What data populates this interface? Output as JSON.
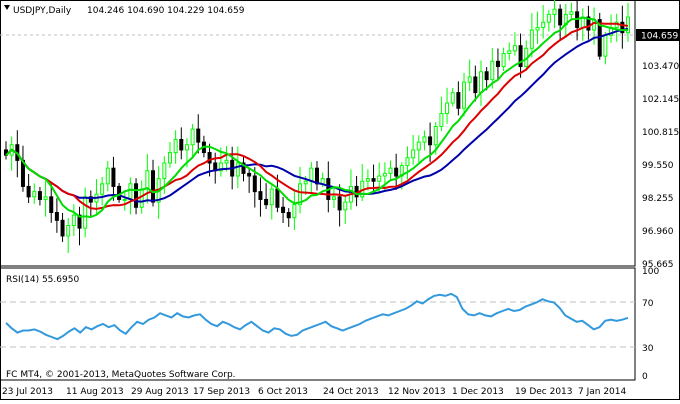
{
  "main_chart": {
    "symbol_label": "USDJPY,Daily",
    "ohlc_label": "104.246 104.690 104.229 104.659",
    "price_scale": [
      "104.659",
      "103.470",
      "102.145",
      "100.815",
      "99.550",
      "98.255",
      "96.960",
      "95.665"
    ],
    "current_price": "104.659"
  },
  "rsi_panel": {
    "label": "RSI(14) 55.6950",
    "scale": [
      "100",
      "70",
      "30",
      "0"
    ],
    "copyright": "FC MT4, © 2001-2013, MetaQuotes Software Corp."
  },
  "time_axis": {
    "labels": [
      "23 Jul 2013",
      "11 Aug 2013",
      "29 Aug 2013",
      "17 Sep 2013",
      "6 Oct 2013",
      "24 Oct 2013",
      "12 Nov 2013",
      "1 Dec 2013",
      "19 Dec 2013",
      "7 Jan 2014"
    ]
  },
  "colors": {
    "background": "#ffffff",
    "bull_candle": "#00ff00",
    "bear_candle": "#000000",
    "ma_fast": "#00dd00",
    "ma_mid": "#dd0000",
    "ma_slow": "#0000aa",
    "rsi_line": "#3399dd",
    "grid_dash": "#c0c0c0",
    "price_tag": "#000000"
  },
  "chart_data": [
    {
      "type": "candlestick",
      "title": "USDJPY,Daily",
      "y_range": [
        95.3,
        105.2
      ],
      "ticks": [
        104.659,
        103.47,
        102.145,
        100.815,
        99.55,
        98.255,
        96.96,
        95.665
      ],
      "close": [
        99.4,
        99.8,
        99.2,
        98.2,
        97.8,
        98.0,
        97.7,
        97.8,
        97.2,
        96.9,
        96.3,
        96.7,
        97.1,
        96.6,
        97.8,
        97.6,
        97.9,
        98.3,
        98.9,
        98.2,
        97.7,
        97.7,
        98.3,
        97.4,
        98.1,
        98.8,
        97.6,
        98.5,
        99.1,
        99.5,
        100.0,
        99.6,
        99.8,
        100.4,
        99.9,
        99.5,
        99.1,
        98.8,
        99.1,
        99.2,
        98.6,
        99.1,
        98.7,
        98.6,
        98.0,
        97.7,
        97.5,
        98.1,
        97.4,
        97.2,
        97.0,
        97.5,
        98.3,
        98.4,
        98.9,
        98.3,
        98.5,
        97.7,
        97.8,
        97.3,
        97.6,
        98.2,
        97.8,
        98.4,
        98.5,
        98.4,
        98.6,
        98.7,
        98.9,
        98.6,
        99.0,
        99.3,
        99.6,
        99.9,
        100.1,
        99.8,
        100.5,
        101.0,
        101.4,
        101.8,
        101.2,
        102.2,
        102.4,
        101.8,
        102.6,
        102.3,
        103.0,
        102.8,
        103.3,
        103.4,
        103.6,
        102.8,
        103.5,
        104.2,
        104.3,
        104.5,
        104.8,
        105.0,
        104.4,
        104.8,
        104.9,
        104.3,
        104.7,
        104.2,
        104.6,
        103.2,
        104.0,
        104.3,
        104.5,
        104.1,
        104.7
      ]
    },
    {
      "type": "line",
      "title": "RSI(14) 55.6950",
      "y_range": [
        0,
        100
      ],
      "ticks": [
        100,
        70,
        30,
        0
      ],
      "values": [
        51,
        46,
        42,
        44,
        44,
        45,
        43,
        40,
        38,
        36,
        39,
        43,
        46,
        42,
        47,
        45,
        48,
        50,
        47,
        49,
        44,
        41,
        47,
        52,
        50,
        54,
        56,
        60,
        58,
        56,
        60,
        57,
        56,
        58,
        59,
        54,
        50,
        48,
        52,
        50,
        47,
        45,
        49,
        52,
        48,
        44,
        42,
        46,
        45,
        41,
        39,
        40,
        44,
        46,
        48,
        50,
        52,
        48,
        46,
        44,
        46,
        48,
        50,
        53,
        55,
        57,
        59,
        58,
        60,
        62,
        64,
        67,
        71,
        69,
        73,
        76,
        77,
        76,
        78,
        75,
        64,
        59,
        58,
        60,
        58,
        57,
        60,
        62,
        64,
        62,
        63,
        66,
        68,
        70,
        73,
        71,
        70,
        65,
        58,
        55,
        52,
        53,
        49,
        45,
        47,
        53,
        54,
        53,
        54,
        55.695
      ]
    }
  ]
}
